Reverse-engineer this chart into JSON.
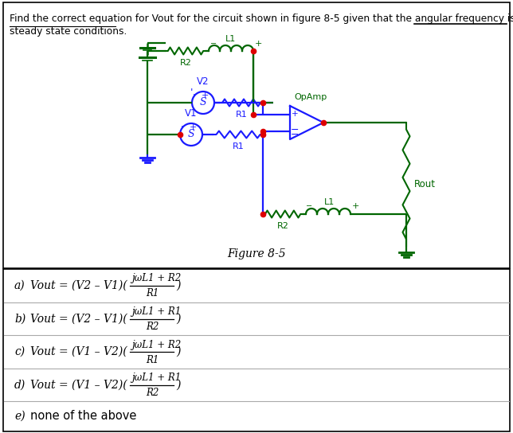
{
  "title_line1": "Find the correct equation for Vout for the circuit shown in figure 8-5 given that the angular frequency is ω under",
  "title_line2": "steady state conditions.",
  "figure_label": "Figure 8-5",
  "bg_color": "#ffffff",
  "text_color": "#000000",
  "blue": "#1a1aff",
  "green": "#006600",
  "red": "#dd0000",
  "border_color": "#000000",
  "answers": [
    {
      "lbl": "a)",
      "lhs": "Vout = (V2 – V1)(",
      "num": "jωL1 + R2",
      "den": "R1",
      "rpar": ")"
    },
    {
      "lbl": "b)",
      "lhs": "Vout = (V2 – V1)(",
      "num": "jωL1 + R1",
      "den": "R2",
      "rpar": ")"
    },
    {
      "lbl": "c)",
      "lhs": "Vout = (V1 – V2)(",
      "num": "jωL1 + R2",
      "den": "R1",
      "rpar": ")"
    },
    {
      "lbl": "d)",
      "lhs": "Vout = (V1 – V2)(",
      "num": "jωL1 + R1",
      "den": "R2",
      "rpar": ")"
    },
    {
      "lbl": "e)",
      "text": "none of the above"
    }
  ]
}
